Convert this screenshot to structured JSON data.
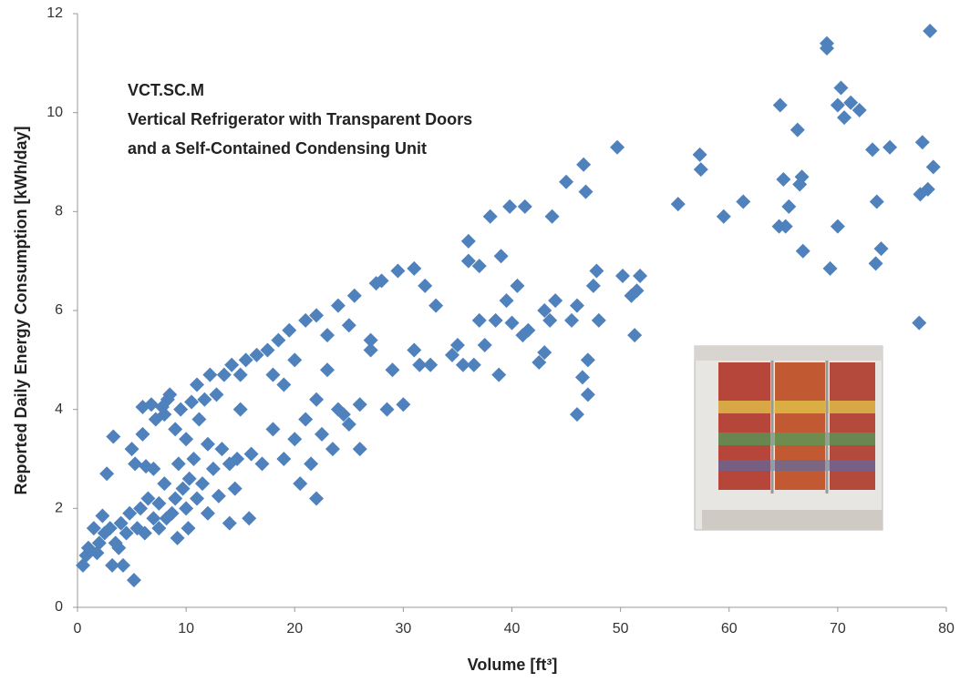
{
  "chart_data": {
    "type": "scatter",
    "annotations": [
      "VCT.SC.M",
      "Vertical Refrigerator with Transparent Doors",
      "and a Self-Contained Condensing Unit"
    ],
    "xlabel": "Volume [ft³]",
    "ylabel": "Reported Daily Energy Consumption  [kWh/day]",
    "xlim": [
      0,
      80
    ],
    "xticks": [
      0,
      10,
      20,
      30,
      40,
      50,
      60,
      70,
      80
    ],
    "ylim": [
      0,
      12
    ],
    "yticks": [
      0,
      2,
      4,
      6,
      8,
      10,
      12
    ],
    "grid": false,
    "series": [
      {
        "color": "#4f81bd",
        "x": [
          0.5,
          0.8,
          1,
          1.5,
          1.8,
          2,
          2.3,
          2.5,
          2.7,
          3,
          3.2,
          3.3,
          3.5,
          3.8,
          4,
          4.2,
          4.5,
          4.8,
          5,
          5.2,
          5.3,
          5.5,
          5.8,
          6,
          6,
          6.2,
          6.3,
          6.5,
          6.8,
          7,
          7,
          7.2,
          7.5,
          7.5,
          7.8,
          8,
          8,
          8.2,
          8.3,
          8.5,
          8.7,
          9,
          9,
          9.2,
          9.3,
          9.5,
          9.7,
          10,
          10,
          10.2,
          10.3,
          10.5,
          10.7,
          11,
          11,
          11.2,
          11.5,
          11.7,
          12,
          12,
          12.2,
          12.5,
          12.8,
          13,
          13.3,
          13.5,
          14,
          14,
          14.2,
          14.5,
          14.7,
          15,
          15,
          15.5,
          15.8,
          16,
          16.5,
          17,
          17.5,
          18,
          18,
          18.5,
          19,
          19,
          19.5,
          20,
          20,
          20.5,
          21,
          21,
          21.5,
          22,
          22,
          22,
          22.5,
          23,
          23,
          23.5,
          24,
          24,
          24.5,
          25,
          25,
          25.5,
          26,
          26,
          27,
          27,
          27.5,
          28,
          28.5,
          29,
          29.5,
          30,
          31,
          31,
          31.5,
          32,
          32.5,
          33,
          34.5,
          35,
          35.5,
          36,
          36,
          36.5,
          37,
          37,
          37.5,
          38,
          38.5,
          38.8,
          39,
          39.5,
          39.8,
          40,
          40.5,
          41,
          41.2,
          41.5,
          42.5,
          43,
          43,
          43.5,
          43.7,
          44,
          45,
          45.5,
          46,
          46,
          46.5,
          46.6,
          46.8,
          47,
          47,
          47.5,
          47.8,
          48,
          49.7,
          50.2,
          51,
          51.3,
          51.5,
          51.8,
          55.3,
          57.3,
          57.4,
          59.5,
          61.3,
          64.6,
          64.7,
          65,
          65.2,
          65.5,
          66.3,
          66.5,
          66.7,
          66.8,
          69,
          69,
          69.3,
          70,
          70,
          70.3,
          70.6,
          71.2,
          72,
          73.2,
          73.5,
          73.6,
          74,
          74.8,
          77.5,
          77.6,
          77.8,
          78.3,
          78.5,
          78.8
        ],
        "values": [
          0.85,
          1.05,
          1.2,
          1.6,
          1.1,
          1.3,
          1.85,
          1.5,
          2.7,
          1.6,
          0.85,
          3.45,
          1.3,
          1.2,
          1.7,
          0.85,
          1.5,
          1.9,
          3.2,
          0.55,
          2.9,
          1.6,
          2.0,
          3.5,
          4.05,
          1.5,
          2.85,
          2.2,
          4.1,
          1.8,
          2.8,
          3.8,
          1.6,
          2.1,
          4.05,
          2.5,
          3.9,
          1.8,
          4.2,
          4.3,
          1.9,
          2.2,
          3.6,
          1.4,
          2.9,
          4.0,
          2.4,
          2.0,
          3.4,
          1.6,
          2.6,
          4.15,
          3.0,
          2.2,
          4.5,
          3.8,
          2.5,
          4.2,
          1.9,
          3.3,
          4.7,
          2.8,
          4.3,
          2.25,
          3.2,
          4.7,
          1.7,
          2.9,
          4.9,
          2.4,
          3.0,
          4.7,
          4.0,
          5.0,
          1.8,
          3.1,
          5.1,
          2.9,
          5.2,
          4.7,
          3.6,
          5.4,
          3.0,
          4.5,
          5.6,
          3.4,
          5.0,
          2.5,
          3.8,
          5.8,
          2.9,
          2.2,
          4.2,
          5.9,
          3.5,
          4.8,
          5.5,
          3.2,
          4.0,
          6.1,
          3.9,
          5.7,
          3.7,
          6.3,
          3.2,
          4.1,
          5.4,
          5.2,
          6.55,
          6.6,
          4.0,
          4.8,
          6.8,
          4.1,
          5.2,
          6.85,
          4.9,
          6.5,
          4.9,
          6.1,
          5.1,
          5.3,
          4.9,
          7.4,
          7.0,
          4.9,
          5.8,
          6.9,
          5.3,
          7.9,
          5.8,
          4.7,
          7.1,
          6.2,
          8.1,
          5.75,
          6.5,
          5.5,
          8.1,
          5.6,
          4.95,
          5.15,
          6.0,
          5.8,
          7.9,
          6.2,
          8.6,
          5.8,
          3.9,
          6.1,
          4.65,
          8.95,
          8.4,
          4.3,
          5.0,
          6.5,
          6.8,
          5.8,
          9.3,
          6.7,
          6.3,
          5.5,
          6.4,
          6.7,
          8.15,
          9.15,
          8.85,
          7.9,
          8.2,
          7.7,
          10.15,
          8.65,
          7.7,
          8.1,
          9.65,
          8.55,
          8.7,
          7.2,
          11.4,
          11.3,
          6.85,
          7.7,
          10.15,
          10.5,
          9.9,
          10.2,
          10.05,
          9.25,
          6.95,
          8.2,
          7.25,
          9.3,
          5.75,
          8.35,
          9.4,
          8.45,
          11.65,
          8.9
        ]
      }
    ]
  }
}
